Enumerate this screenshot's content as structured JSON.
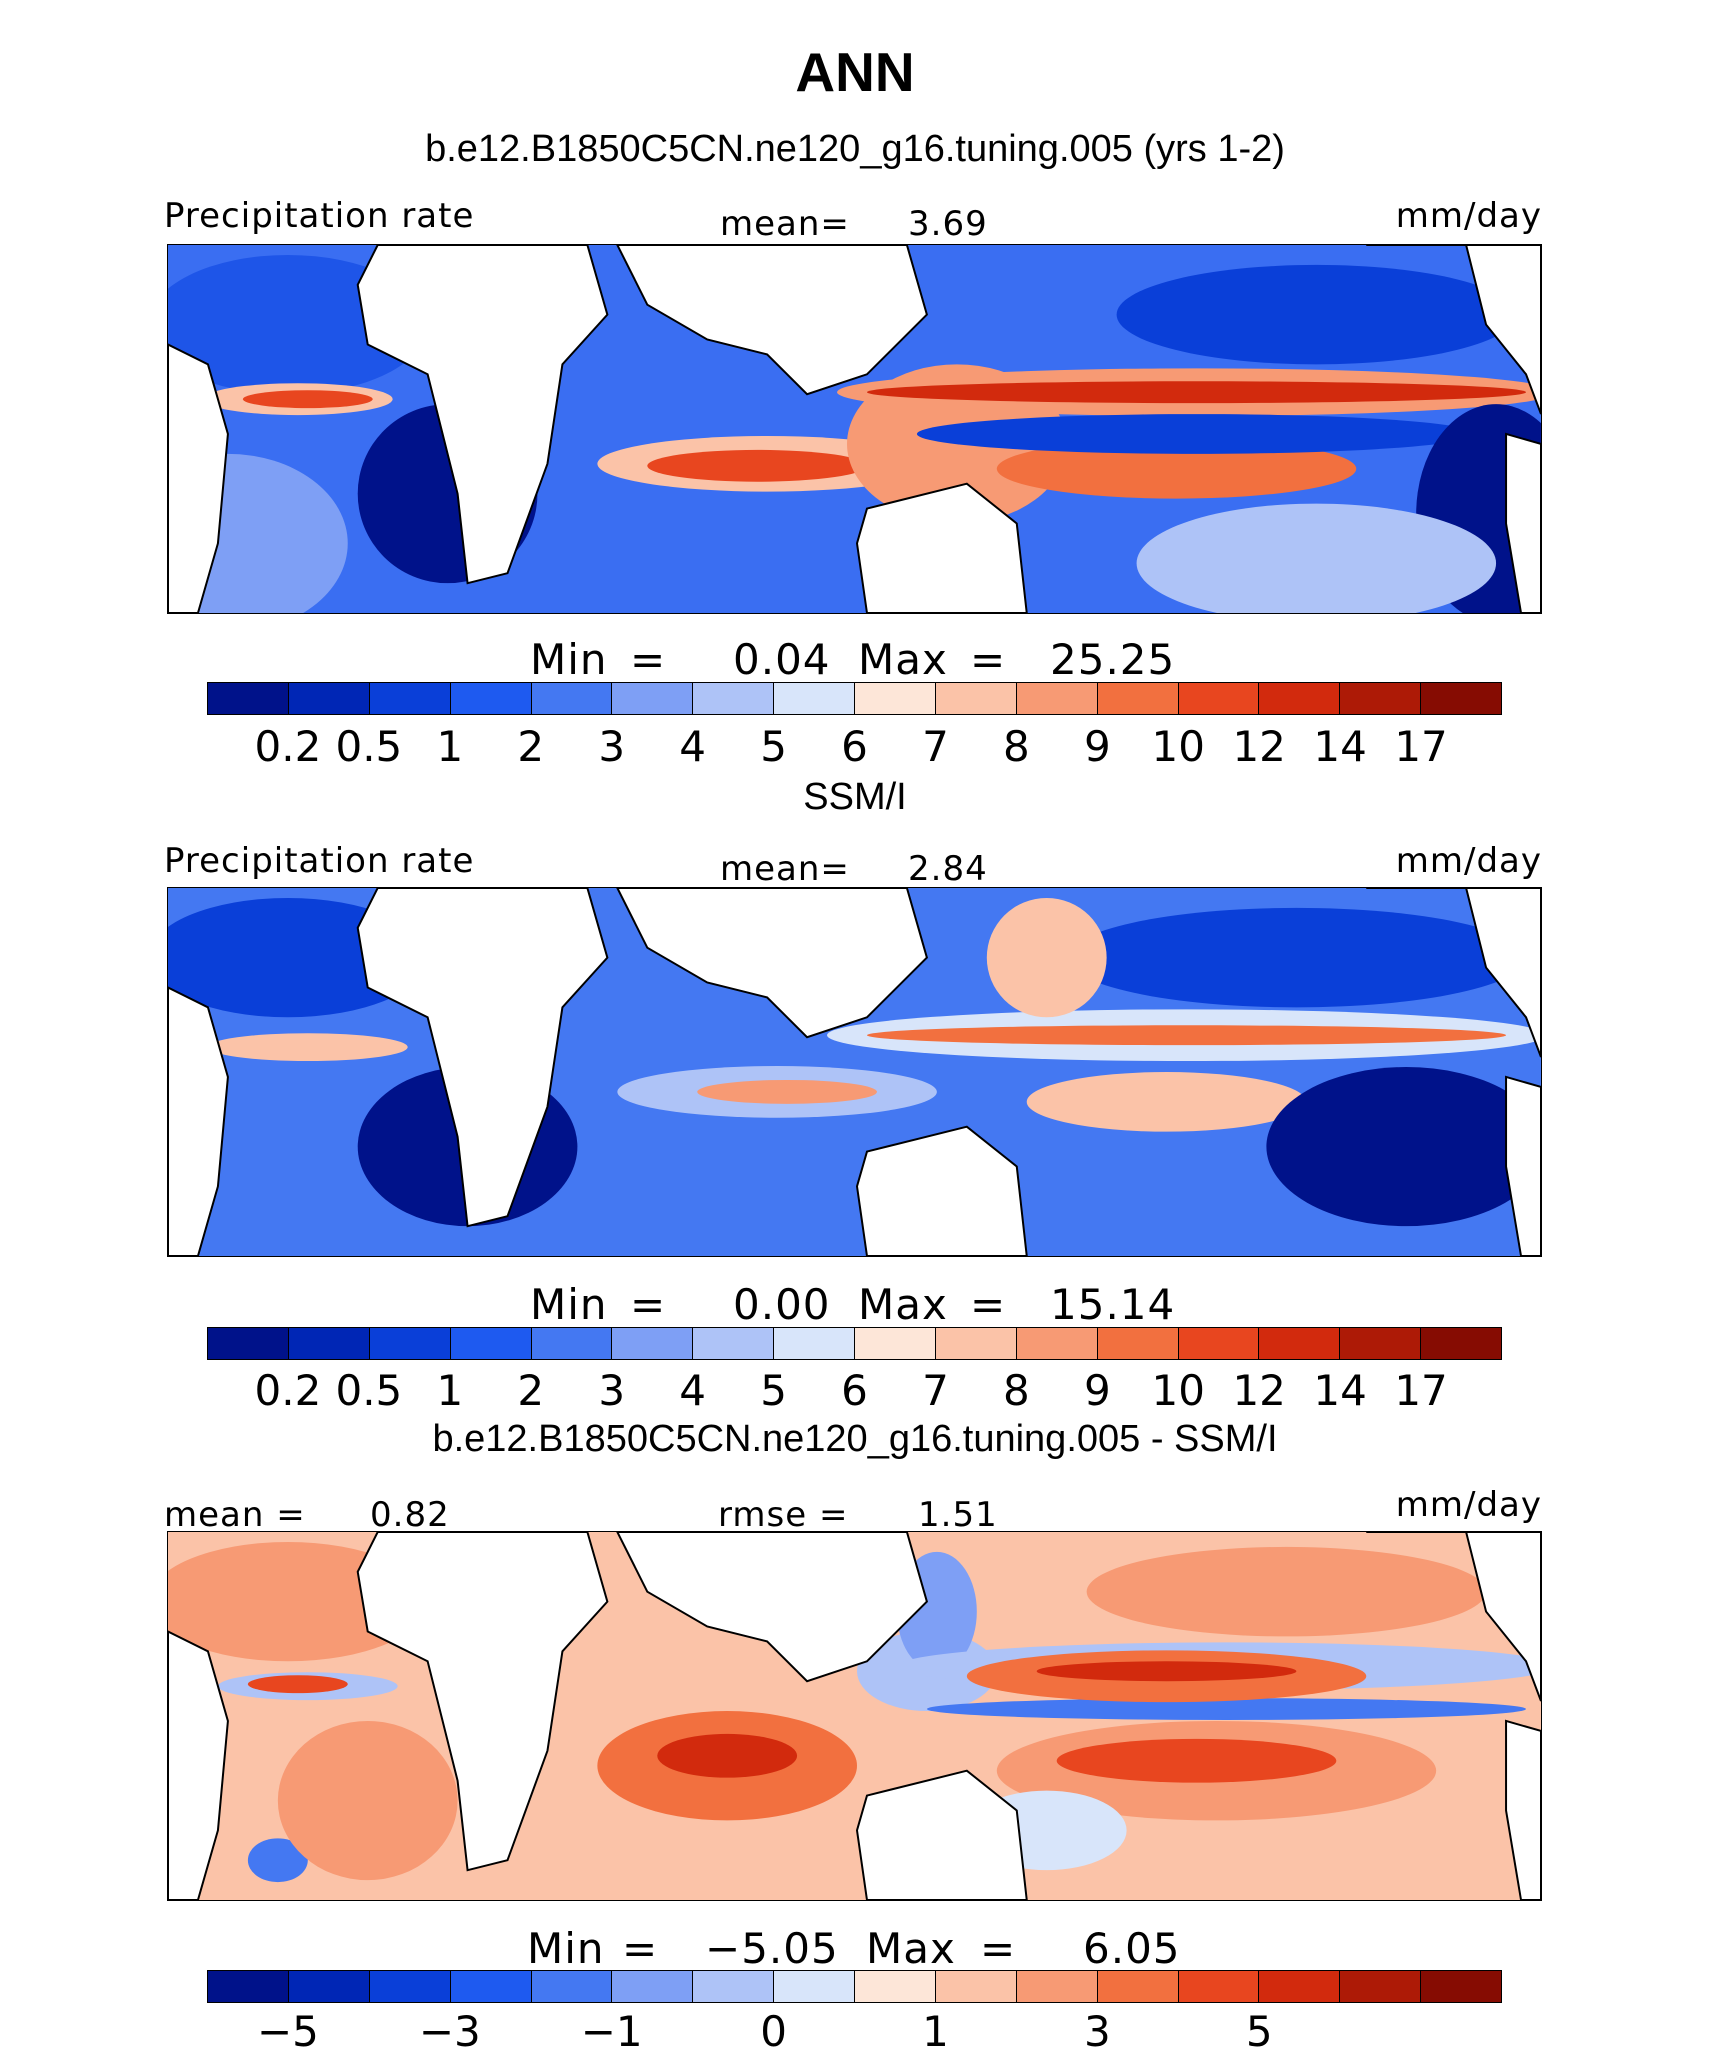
{
  "title": "ANN",
  "chart_data": [
    {
      "type": "heatmap",
      "subtitle": "b.e12.B1850C5CN.ne120_g16.tuning.005 (yrs 1-2)",
      "left_label": "Precipitation rate",
      "center_label": "mean=",
      "center_value": "3.69",
      "units": "mm/day",
      "min_label": "Min",
      "min_value": "0.04",
      "max_label": "Max",
      "max_value": "25.25",
      "eq": "=",
      "colorbar_ticks": [
        "0.2",
        "0.5",
        "1",
        "2",
        "3",
        "4",
        "5",
        "6",
        "7",
        "8",
        "9",
        "10",
        "12",
        "14",
        "17"
      ],
      "colors": [
        "#00128a",
        "#0026b5",
        "#0a3fd8",
        "#1e5af0",
        "#4478f2",
        "#7e9ff5",
        "#aec3f7",
        "#d8e5fa",
        "#fde6d8",
        "#fbc3a8",
        "#f79a74",
        "#f2703f",
        "#e8461f",
        "#d22a0d",
        "#ad1a06",
        "#860c02"
      ]
    },
    {
      "type": "heatmap",
      "subtitle": "SSM/I",
      "left_label": "Precipitation rate",
      "center_label": "mean=",
      "center_value": "2.84",
      "units": "mm/day",
      "min_label": "Min",
      "min_value": "0.00",
      "max_label": "Max",
      "max_value": "15.14",
      "eq": "=",
      "colorbar_ticks": [
        "0.2",
        "0.5",
        "1",
        "2",
        "3",
        "4",
        "5",
        "6",
        "7",
        "8",
        "9",
        "10",
        "12",
        "14",
        "17"
      ],
      "colors": [
        "#00128a",
        "#0026b5",
        "#0a3fd8",
        "#1e5af0",
        "#4478f2",
        "#7e9ff5",
        "#aec3f7",
        "#d8e5fa",
        "#fde6d8",
        "#fbc3a8",
        "#f79a74",
        "#f2703f",
        "#e8461f",
        "#d22a0d",
        "#ad1a06",
        "#860c02"
      ]
    },
    {
      "type": "heatmap",
      "subtitle": "b.e12.B1850C5CN.ne120_g16.tuning.005 - SSM/I",
      "left_label": "mean =",
      "left_value": "0.82",
      "center_label": "rmse =",
      "center_value": "1.51",
      "units": "mm/day",
      "min_label": "Min",
      "min_value": "−5.05",
      "max_label": "Max",
      "max_value": "6.05",
      "eq": "=",
      "colorbar_ticks": [
        "−5",
        "−3",
        "−1",
        "0",
        "1",
        "3",
        "5"
      ],
      "colors": [
        "#00128a",
        "#0026b5",
        "#0a3fd8",
        "#1e5af0",
        "#4478f2",
        "#7e9ff5",
        "#aec3f7",
        "#d8e5fa",
        "#fde6d8",
        "#fbc3a8",
        "#f79a74",
        "#f2703f",
        "#e8461f",
        "#d22a0d",
        "#ad1a06",
        "#860c02"
      ]
    }
  ]
}
